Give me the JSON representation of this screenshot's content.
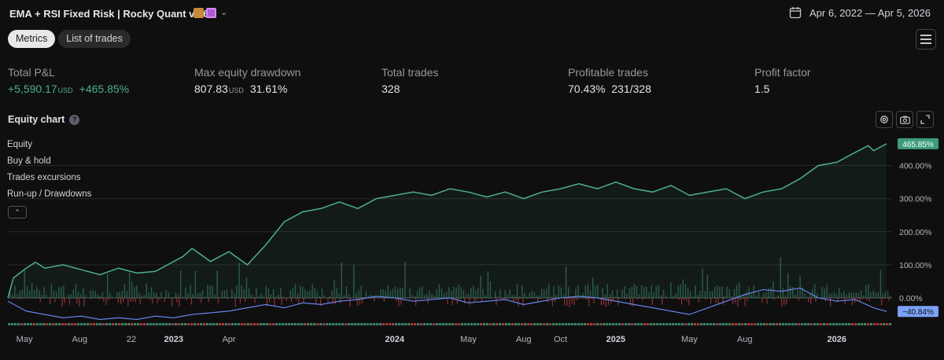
{
  "header": {
    "title": "EMA + RSI Fixed Risk | Rocky Quant v2.6",
    "date_range": "Apr 6, 2022 — Apr 5, 2026",
    "icons": [
      "emoji-icon",
      "calendar-emoji-icon",
      "chevron-down-icon",
      "calendar-icon"
    ]
  },
  "tabs": [
    {
      "label": "Metrics",
      "active": true
    },
    {
      "label": "List of trades",
      "active": false
    }
  ],
  "metrics": {
    "total_pnl": {
      "label": "Total P&L",
      "value": "+5,590.17",
      "unit": "USD",
      "pct": "+465.85%"
    },
    "max_drawdown": {
      "label": "Max equity drawdown",
      "value": "807.83",
      "unit": "USD",
      "pct": "31.61%"
    },
    "total_trades": {
      "label": "Total trades",
      "value": "328"
    },
    "profitable_trades": {
      "label": "Profitable trades",
      "value": "70.43%",
      "ratio": "231/328"
    },
    "profit_factor": {
      "label": "Profit factor",
      "value": "1.5"
    }
  },
  "equity_chart": {
    "title": "Equity chart",
    "help": "?",
    "legend": [
      "Equity",
      "Buy & hold",
      "Trades excursions",
      "Run-up / Drawdowns"
    ]
  },
  "colors": {
    "equity": "#4caf8f",
    "buyhold": "#6c8cff",
    "runup": "#3e8f73",
    "drawdown": "#b23b3b",
    "background": "#0f0f0f"
  },
  "chart_data": {
    "type": "line",
    "y_ticks": [
      "0.00%",
      "100.00%",
      "200.00%",
      "300.00%",
      "400.00%"
    ],
    "ylim": [
      -90,
      480
    ],
    "last_equity_label": "465.85%",
    "last_buyhold_label": "−40.84%",
    "x_ticks": [
      {
        "label": "May",
        "t": 0.9,
        "bold": false
      },
      {
        "label": "Aug",
        "t": 3.9,
        "bold": false
      },
      {
        "label": "22",
        "t": 6.7,
        "bold": false
      },
      {
        "label": "2023",
        "t": 9.0,
        "bold": true
      },
      {
        "label": "Apr",
        "t": 12.0,
        "bold": false
      },
      {
        "label": "2024",
        "t": 21.0,
        "bold": true
      },
      {
        "label": "May",
        "t": 25.0,
        "bold": false
      },
      {
        "label": "Aug",
        "t": 28.0,
        "bold": false
      },
      {
        "label": "Oct",
        "t": 30.0,
        "bold": false
      },
      {
        "label": "2025",
        "t": 33.0,
        "bold": true
      },
      {
        "label": "May",
        "t": 37.0,
        "bold": false
      },
      {
        "label": "Aug",
        "t": 40.0,
        "bold": false
      },
      {
        "label": "2026",
        "t": 45.0,
        "bold": true
      }
    ],
    "series": [
      {
        "name": "Equity",
        "points": [
          [
            0,
            0
          ],
          [
            0.3,
            60
          ],
          [
            1,
            90
          ],
          [
            1.5,
            108
          ],
          [
            2,
            90
          ],
          [
            3,
            100
          ],
          [
            4,
            85
          ],
          [
            5,
            70
          ],
          [
            6,
            90
          ],
          [
            7,
            75
          ],
          [
            8,
            80
          ],
          [
            9,
            110
          ],
          [
            9.5,
            125
          ],
          [
            10,
            150
          ],
          [
            11,
            110
          ],
          [
            12,
            140
          ],
          [
            13,
            100
          ],
          [
            14,
            160
          ],
          [
            15,
            230
          ],
          [
            16,
            260
          ],
          [
            17,
            270
          ],
          [
            18,
            290
          ],
          [
            19,
            270
          ],
          [
            20,
            300
          ],
          [
            21,
            310
          ],
          [
            22,
            320
          ],
          [
            23,
            310
          ],
          [
            24,
            330
          ],
          [
            25,
            320
          ],
          [
            26,
            305
          ],
          [
            27,
            320
          ],
          [
            28,
            300
          ],
          [
            29,
            320
          ],
          [
            30,
            330
          ],
          [
            31,
            345
          ],
          [
            32,
            330
          ],
          [
            33,
            350
          ],
          [
            34,
            330
          ],
          [
            35,
            320
          ],
          [
            36,
            340
          ],
          [
            37,
            310
          ],
          [
            38,
            320
          ],
          [
            39,
            330
          ],
          [
            40,
            300
          ],
          [
            41,
            320
          ],
          [
            42,
            330
          ],
          [
            43,
            360
          ],
          [
            44,
            400
          ],
          [
            45,
            410
          ],
          [
            46,
            440
          ],
          [
            46.7,
            460
          ],
          [
            47,
            445
          ],
          [
            47.7,
            465.85
          ]
        ]
      },
      {
        "name": "Buy & hold",
        "points": [
          [
            0,
            -10
          ],
          [
            1,
            -40
          ],
          [
            2,
            -50
          ],
          [
            3,
            -60
          ],
          [
            4,
            -55
          ],
          [
            5,
            -65
          ],
          [
            6,
            -60
          ],
          [
            7,
            -65
          ],
          [
            8,
            -55
          ],
          [
            9,
            -60
          ],
          [
            10,
            -50
          ],
          [
            11,
            -45
          ],
          [
            12,
            -40
          ],
          [
            13,
            -30
          ],
          [
            14,
            -20
          ],
          [
            15,
            -30
          ],
          [
            16,
            -15
          ],
          [
            17,
            -20
          ],
          [
            18,
            -10
          ],
          [
            19,
            -5
          ],
          [
            20,
            5
          ],
          [
            21,
            0
          ],
          [
            22,
            -10
          ],
          [
            23,
            -5
          ],
          [
            24,
            0
          ],
          [
            25,
            -15
          ],
          [
            26,
            -10
          ],
          [
            27,
            -5
          ],
          [
            28,
            -20
          ],
          [
            29,
            -10
          ],
          [
            30,
            0
          ],
          [
            31,
            5
          ],
          [
            32,
            0
          ],
          [
            33,
            -10
          ],
          [
            34,
            -20
          ],
          [
            35,
            -30
          ],
          [
            36,
            -40
          ],
          [
            37,
            -50
          ],
          [
            38,
            -30
          ],
          [
            39,
            -10
          ],
          [
            40,
            10
          ],
          [
            41,
            25
          ],
          [
            42,
            20
          ],
          [
            43,
            30
          ],
          [
            44,
            0
          ],
          [
            45,
            -10
          ],
          [
            46,
            -5
          ],
          [
            47,
            -30
          ],
          [
            47.7,
            -40.84
          ]
        ]
      }
    ]
  }
}
